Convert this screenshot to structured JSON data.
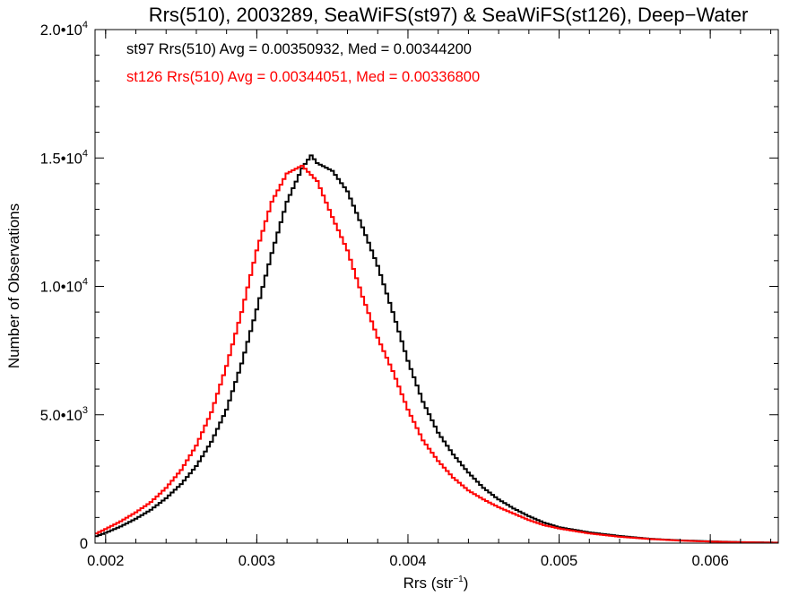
{
  "chart_data": {
    "type": "line",
    "step": true,
    "title": "Rrs(510), 2003289, SeaWiFS(st97) & SeaWiFS(st126), Deep−Water",
    "xlabel": "Rrs (str",
    "xlabel_exponent": "−1",
    "xlabel_suffix": ")",
    "ylabel": "Number of Observations",
    "xlim": [
      0.00193,
      0.00645
    ],
    "ylim": [
      0,
      20000
    ],
    "grid": false,
    "x_ticks": [
      {
        "value": 0.002,
        "label": "0.002"
      },
      {
        "value": 0.003,
        "label": "0.003"
      },
      {
        "value": 0.004,
        "label": "0.004"
      },
      {
        "value": 0.005,
        "label": "0.005"
      },
      {
        "value": 0.006,
        "label": "0.006"
      }
    ],
    "y_ticks": [
      {
        "value": 0,
        "label": "0",
        "exp": ""
      },
      {
        "value": 5000,
        "label": "5.0•10",
        "exp": "3"
      },
      {
        "value": 10000,
        "label": "1.0•10",
        "exp": "4"
      },
      {
        "value": 15000,
        "label": "1.5•10",
        "exp": "4"
      },
      {
        "value": 20000,
        "label": "2.0•10",
        "exp": "4"
      }
    ],
    "annotations": [
      {
        "text": "st97 Rrs(510) Avg = 0.00350932, Med = 0.00344200",
        "color": "#000000"
      },
      {
        "text": "st126 Rrs(510) Avg = 0.00344051, Med = 0.00336800",
        "color": "#ff0000"
      }
    ],
    "series": [
      {
        "color": "#000000",
        "x": [
          0.00193,
          0.002,
          0.0021,
          0.0022,
          0.0023,
          0.0024,
          0.0025,
          0.0026,
          0.0027,
          0.0028,
          0.0029,
          0.003,
          0.0031,
          0.0032,
          0.0033,
          0.00336,
          0.0034,
          0.0035,
          0.0036,
          0.0037,
          0.0038,
          0.0039,
          0.004,
          0.0041,
          0.0042,
          0.0043,
          0.0044,
          0.0045,
          0.0046,
          0.0047,
          0.0048,
          0.0049,
          0.005,
          0.0052,
          0.0054,
          0.0056,
          0.0058,
          0.006,
          0.0062,
          0.00645
        ],
        "y": [
          250,
          400,
          650,
          950,
          1300,
          1750,
          2300,
          3000,
          3950,
          5200,
          7000,
          9100,
          11300,
          13300,
          14600,
          15100,
          14800,
          14500,
          13700,
          12300,
          10800,
          9000,
          7100,
          5500,
          4300,
          3450,
          2750,
          2150,
          1700,
          1350,
          1050,
          800,
          620,
          420,
          280,
          170,
          110,
          70,
          40,
          20
        ]
      },
      {
        "color": "#ff0000",
        "x": [
          0.00193,
          0.002,
          0.0021,
          0.0022,
          0.0023,
          0.0024,
          0.0025,
          0.0026,
          0.0027,
          0.0028,
          0.0029,
          0.003,
          0.0031,
          0.0032,
          0.0033,
          0.0034,
          0.0035,
          0.0036,
          0.0037,
          0.0038,
          0.0039,
          0.004,
          0.0041,
          0.0042,
          0.0043,
          0.0044,
          0.0045,
          0.0046,
          0.0047,
          0.0048,
          0.0049,
          0.005,
          0.0052,
          0.0054,
          0.0056,
          0.0058,
          0.006,
          0.0062,
          0.00645
        ],
        "y": [
          350,
          550,
          850,
          1200,
          1600,
          2150,
          2850,
          3800,
          5100,
          6900,
          9000,
          11400,
          13300,
          14400,
          14700,
          14100,
          12700,
          11400,
          9600,
          8000,
          6700,
          5200,
          4000,
          3200,
          2550,
          2050,
          1700,
          1400,
          1150,
          900,
          700,
          570,
          380,
          250,
          160,
          100,
          60,
          35,
          15
        ]
      }
    ]
  }
}
